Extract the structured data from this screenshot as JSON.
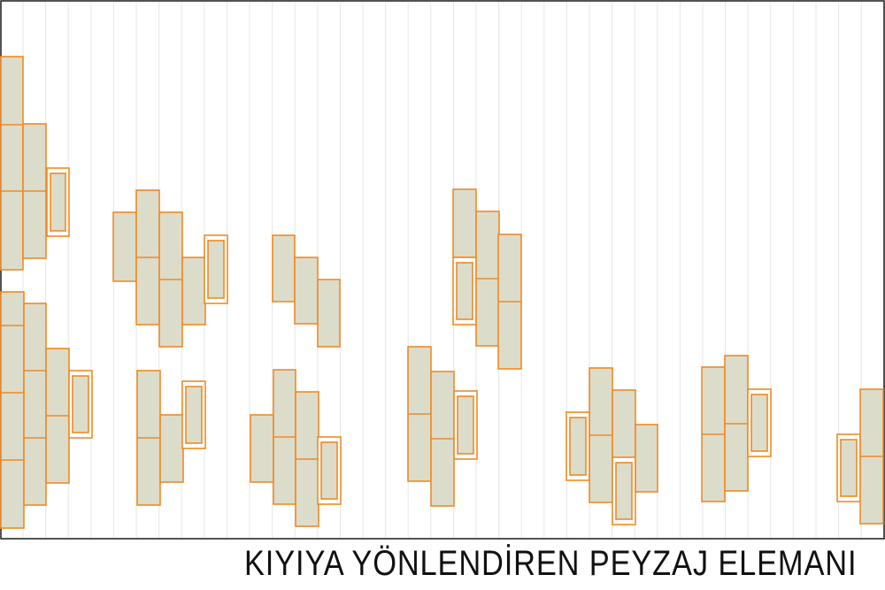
{
  "caption": "KIYIYA YÖNLENDİREN PEYZAJ ELEMANI",
  "colors": {
    "block_fill": "#dcdccb",
    "block_stroke": "#f08a24",
    "frame": "#1a1a1a",
    "grid": "#e6e6e6"
  }
}
